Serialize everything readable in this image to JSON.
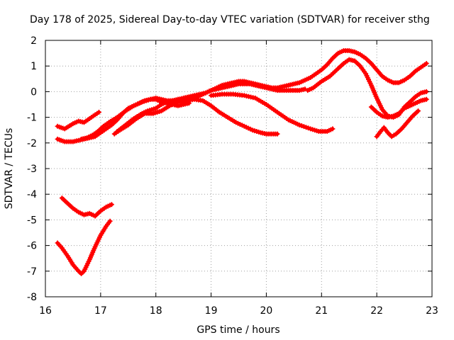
{
  "chart_data": {
    "type": "scatter",
    "title": "Day 178 of 2025, Sidereal Day-to-day VTEC variation (SDTVAR) for receiver sthg",
    "xlabel": "GPS time / hours",
    "ylabel": "SDTVAR / TECUs",
    "xlim": [
      16,
      23
    ],
    "ylim": [
      -8,
      2
    ],
    "xticks": [
      16,
      17,
      18,
      19,
      20,
      21,
      22,
      23
    ],
    "yticks": [
      -8,
      -7,
      -6,
      -5,
      -4,
      -3,
      -2,
      -1,
      0,
      1,
      2
    ],
    "grid": true,
    "marker": "plus",
    "colors": {
      "series": "#ff0000",
      "grid": "#a0a0a0",
      "axis": "#000000"
    },
    "series": [
      {
        "name": "arc-a",
        "x": [
          16.22,
          16.35,
          16.5,
          16.6,
          16.7,
          16.8,
          16.9,
          16.97
        ],
        "y": [
          -1.35,
          -1.45,
          -1.25,
          -1.15,
          -1.2,
          -1.05,
          -0.9,
          -0.8
        ]
      },
      {
        "name": "arc-b",
        "x": [
          16.22,
          16.35,
          16.5,
          16.6,
          16.7,
          16.8,
          16.9,
          17.0,
          17.1,
          17.2,
          17.3,
          17.4,
          17.5,
          17.6,
          17.7,
          17.8,
          17.9,
          18.0,
          18.1,
          18.2,
          18.3,
          18.4,
          18.5,
          18.6
        ],
        "y": [
          -1.85,
          -1.95,
          -1.95,
          -1.9,
          -1.85,
          -1.8,
          -1.75,
          -1.6,
          -1.45,
          -1.3,
          -1.1,
          -0.85,
          -0.65,
          -0.55,
          -0.45,
          -0.35,
          -0.3,
          -0.3,
          -0.4,
          -0.45,
          -0.5,
          -0.55,
          -0.5,
          -0.45
        ]
      },
      {
        "name": "arc-c",
        "x": [
          16.65,
          16.75,
          16.85,
          16.95,
          17.05,
          17.15,
          17.3,
          17.45,
          17.6,
          17.75,
          17.9,
          18.0,
          18.1,
          18.2,
          18.3,
          18.4,
          18.5,
          18.6,
          18.7,
          18.8,
          18.9,
          19.0,
          19.1,
          19.2,
          19.3,
          19.4,
          19.5,
          19.6,
          19.7,
          19.8,
          19.9,
          20.0,
          20.1,
          20.2,
          20.3,
          20.4,
          20.5,
          20.6,
          20.7
        ],
        "y": [
          -1.85,
          -1.8,
          -1.7,
          -1.55,
          -1.35,
          -1.2,
          -1.0,
          -0.75,
          -0.55,
          -0.4,
          -0.3,
          -0.25,
          -0.3,
          -0.35,
          -0.35,
          -0.3,
          -0.3,
          -0.3,
          -0.25,
          -0.15,
          -0.05,
          0.05,
          0.1,
          0.15,
          0.2,
          0.25,
          0.3,
          0.3,
          0.3,
          0.25,
          0.2,
          0.15,
          0.1,
          0.05,
          0.05,
          0.05,
          0.05,
          0.05,
          0.1
        ]
      },
      {
        "name": "arc-d",
        "x": [
          17.3,
          17.45,
          17.6,
          17.75,
          17.85,
          18.0,
          18.1,
          18.2,
          18.3,
          18.4,
          18.5,
          18.6,
          18.7,
          18.8,
          18.9,
          19.0,
          19.1,
          19.2,
          19.3,
          19.4,
          19.5,
          19.6,
          19.7,
          19.8,
          19.9,
          20.0,
          20.1,
          20.2,
          20.3,
          20.4,
          20.5,
          20.6,
          20.7,
          20.8,
          20.9,
          21.0,
          21.1,
          21.2,
          21.3,
          21.4,
          21.5,
          21.6,
          21.7,
          21.8,
          21.9,
          22.0,
          22.1,
          22.2,
          22.3,
          22.4,
          22.5,
          22.6,
          22.7,
          22.8,
          22.9
        ],
        "y": [
          -1.55,
          -1.3,
          -1.05,
          -0.85,
          -0.75,
          -0.65,
          -0.5,
          -0.4,
          -0.35,
          -0.3,
          -0.25,
          -0.2,
          -0.15,
          -0.1,
          -0.05,
          0.05,
          0.15,
          0.25,
          0.3,
          0.35,
          0.4,
          0.4,
          0.35,
          0.3,
          0.25,
          0.2,
          0.15,
          0.15,
          0.2,
          0.25,
          0.3,
          0.35,
          0.45,
          0.55,
          0.7,
          0.85,
          1.05,
          1.3,
          1.5,
          1.6,
          1.6,
          1.55,
          1.45,
          1.3,
          1.1,
          0.85,
          0.6,
          0.45,
          0.35,
          0.35,
          0.45,
          0.6,
          0.8,
          0.95,
          1.1
        ]
      },
      {
        "name": "arc-e",
        "x": [
          17.25,
          17.35,
          17.5,
          17.65,
          17.8,
          17.95,
          18.1,
          18.25,
          18.4,
          18.55,
          18.7,
          18.85,
          19.0,
          19.15,
          19.3,
          19.45,
          19.6,
          19.75,
          19.9,
          20.0,
          20.1,
          20.2
        ],
        "y": [
          -1.65,
          -1.5,
          -1.3,
          -1.05,
          -0.85,
          -0.85,
          -0.75,
          -0.55,
          -0.4,
          -0.35,
          -0.3,
          -0.35,
          -0.55,
          -0.8,
          -1.0,
          -1.2,
          -1.35,
          -1.5,
          -1.6,
          -1.65,
          -1.65,
          -1.65
        ]
      },
      {
        "name": "arc-f",
        "x": [
          19.0,
          19.2,
          19.4,
          19.6,
          19.8,
          20.0,
          20.2,
          20.4,
          20.6,
          20.8,
          20.95,
          21.1,
          21.2
        ],
        "y": [
          -0.15,
          -0.1,
          -0.1,
          -0.15,
          -0.25,
          -0.5,
          -0.8,
          -1.1,
          -1.3,
          -1.45,
          -1.55,
          -1.55,
          -1.45
        ]
      },
      {
        "name": "arc-g",
        "x": [
          20.75,
          20.85,
          21.0,
          21.15,
          21.3,
          21.4,
          21.5,
          21.6,
          21.7,
          21.8,
          21.9,
          22.0,
          22.1,
          22.2,
          22.3,
          22.4,
          22.5,
          22.6,
          22.7,
          22.8,
          22.9
        ],
        "y": [
          0.05,
          0.15,
          0.4,
          0.6,
          0.9,
          1.1,
          1.25,
          1.2,
          1.0,
          0.7,
          0.25,
          -0.25,
          -0.7,
          -0.95,
          -1.0,
          -0.9,
          -0.6,
          -0.4,
          -0.2,
          -0.05,
          0.0
        ]
      },
      {
        "name": "arc-h",
        "x": [
          21.9,
          22.0,
          22.1,
          22.2,
          22.3,
          22.4,
          22.5,
          22.6,
          22.7,
          22.8,
          22.9
        ],
        "y": [
          -0.6,
          -0.8,
          -0.95,
          -1.0,
          -0.95,
          -0.85,
          -0.65,
          -0.55,
          -0.45,
          -0.35,
          -0.3
        ]
      },
      {
        "name": "arc-i",
        "x": [
          22.0,
          22.07,
          22.13,
          22.2,
          22.27,
          22.35,
          22.45,
          22.55,
          22.65,
          22.75
        ],
        "y": [
          -1.75,
          -1.55,
          -1.4,
          -1.6,
          -1.75,
          -1.65,
          -1.45,
          -1.2,
          -0.95,
          -0.75
        ]
      },
      {
        "name": "arc-j",
        "x": [
          16.3,
          16.4,
          16.5,
          16.6,
          16.7,
          16.8,
          16.9,
          17.0,
          17.1,
          17.2
        ],
        "y": [
          -4.15,
          -4.35,
          -4.55,
          -4.7,
          -4.8,
          -4.75,
          -4.85,
          -4.65,
          -4.5,
          -4.4
        ]
      },
      {
        "name": "arc-k",
        "x": [
          16.22,
          16.3,
          16.4,
          16.5,
          16.6,
          16.65,
          16.7,
          16.8,
          16.9,
          17.0,
          17.1,
          17.17
        ],
        "y": [
          -5.9,
          -6.1,
          -6.4,
          -6.75,
          -7.0,
          -7.1,
          -7.0,
          -6.55,
          -6.05,
          -5.6,
          -5.25,
          -5.05
        ]
      }
    ]
  }
}
